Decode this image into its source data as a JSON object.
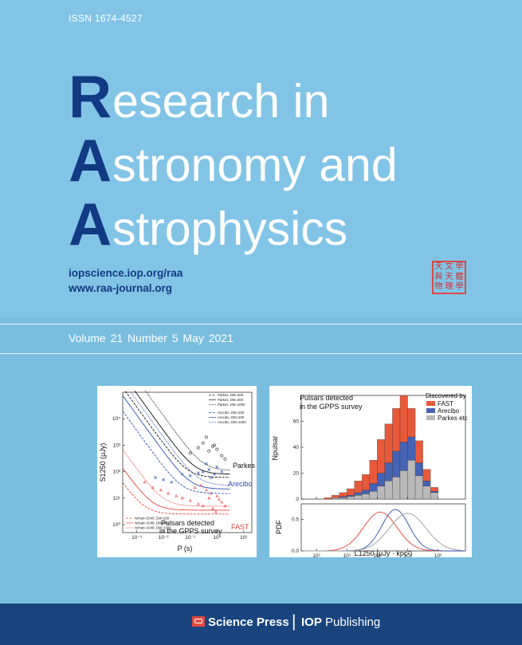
{
  "issn": "ISSN  1674-4527",
  "title": {
    "line1": {
      "cap": "R",
      "rest": "esearch in"
    },
    "line2": {
      "cap": "A",
      "rest": "stronomy and"
    },
    "line3": {
      "cap": "A",
      "rest": "strophysics"
    }
  },
  "links": {
    "url1": "iopscience.iop.org/raa",
    "url2": "www.raa-journal.org"
  },
  "seal_chars": [
    "天",
    "文",
    "學",
    "與",
    "天",
    "體",
    "物",
    "理",
    "學"
  ],
  "issue": "Volume 21   Number 5   May  2021",
  "colors": {
    "accent": "#123a84",
    "fast": "#e8593a",
    "arecibo": "#4662b5",
    "parkes": "#b9b9b9"
  },
  "footer": {
    "publisher1": "Science Press",
    "separator": "|",
    "publisher2_bold": "IOP",
    "publisher2_rest": " Publishing"
  },
  "chart_data": [
    {
      "type": "scatter",
      "title": "",
      "xlabel": "P (s)",
      "ylabel": "S1250 (μJy)",
      "x_log": true,
      "y_log": true,
      "xlim": [
        0.0003,
        20
      ],
      "ylim": [
        0.5,
        100000
      ],
      "xticks": [
        "10⁻³",
        "10⁻²",
        "10⁻¹",
        "10⁰",
        "10¹"
      ],
      "yticks": [
        "10⁰",
        "10¹",
        "10²",
        "10³",
        "10⁴"
      ],
      "annotations": [
        "Parkes",
        "Arecibo",
        "FAST"
      ],
      "caption": [
        "Pulsars detected",
        "in the GPPS survey"
      ],
      "legend_top": [
        "Parkes, DM=200",
        "Parkes, DM=500",
        "Parkes, DM=1000",
        "Arecibo, DM=200",
        "Arecibo, DM=500",
        "Arecibo, DM=1000"
      ],
      "legend_bottom": [
        "Nchan=2048, DM=200",
        "Nchan=2048, DM=500",
        "Nchan=2048, DM=1000"
      ],
      "series": [
        {
          "name": "FAST",
          "x": [
            0.002,
            0.004,
            0.008,
            0.015,
            0.03,
            0.05,
            0.1,
            0.2,
            0.3,
            0.5,
            0.7,
            1.0,
            1.5,
            2.0,
            0.4,
            0.6,
            0.9,
            1.2,
            0.25,
            0.15
          ],
          "y": [
            40,
            25,
            20,
            15,
            12,
            10,
            8,
            6,
            5,
            10,
            4,
            12,
            7,
            5,
            20,
            15,
            3,
            9,
            30,
            25
          ]
        },
        {
          "name": "Arecibo",
          "x": [
            0.005,
            0.01,
            0.02,
            0.05,
            0.1,
            0.2,
            0.3,
            0.5,
            0.8,
            1.0,
            1.5,
            0.4,
            0.6
          ],
          "y": [
            60,
            50,
            40,
            80,
            70,
            90,
            100,
            120,
            80,
            150,
            100,
            200,
            60
          ]
        },
        {
          "name": "Parkes",
          "x": [
            0.1,
            0.2,
            0.3,
            0.5,
            0.8,
            1.0,
            1.5,
            2.0,
            0.4,
            0.7
          ],
          "y": [
            500,
            800,
            1200,
            600,
            1000,
            700,
            400,
            300,
            2000,
            900
          ]
        }
      ]
    },
    {
      "type": "bar",
      "title": "",
      "xlabel": "L1250 (μJy · kpc²)",
      "ylabel_top": "Npulsar",
      "ylabel_bottom": "PDF",
      "caption": [
        "Pulsars detected",
        "in the GPPS survey"
      ],
      "legend_title": "Discovered by",
      "x_log": true,
      "xticks": [
        "10²",
        "10³",
        "10⁴",
        "10⁵",
        "10⁶"
      ],
      "yticks_top": [
        "0",
        "20",
        "40",
        "60"
      ],
      "yticks_bottom": [
        "0.0",
        "0.5"
      ],
      "ylim_top": [
        0,
        80
      ],
      "ylim_bottom": [
        0,
        0.75
      ],
      "bin_log_edges": [
        2.0,
        2.25,
        2.5,
        2.75,
        3.0,
        3.25,
        3.5,
        3.75,
        4.0,
        4.25,
        4.5,
        4.75,
        5.0,
        5.25,
        5.5,
        5.75,
        6.0
      ],
      "series": [
        {
          "name": "Parkes etc",
          "values": [
            0,
            0,
            1,
            1,
            2,
            3,
            4,
            6,
            10,
            14,
            17,
            22,
            30,
            18,
            10,
            5,
            2
          ]
        },
        {
          "name": "Arecibo",
          "values": [
            0,
            0,
            0,
            1,
            1,
            2,
            3,
            6,
            10,
            14,
            20,
            22,
            18,
            10,
            4,
            1,
            0
          ]
        },
        {
          "name": "FAST",
          "values": [
            0,
            1,
            2,
            3,
            5,
            9,
            12,
            18,
            26,
            30,
            33,
            36,
            22,
            17,
            9,
            3,
            0
          ]
        }
      ],
      "pdf_curves": [
        {
          "name": "FAST",
          "peak_log": 4.1,
          "width": 0.55,
          "peak": 0.62
        },
        {
          "name": "Arecibo",
          "peak_log": 4.6,
          "width": 0.45,
          "peak": 0.66
        },
        {
          "name": "Parkes etc",
          "peak_log": 5.0,
          "width": 0.6,
          "peak": 0.6
        }
      ]
    }
  ]
}
